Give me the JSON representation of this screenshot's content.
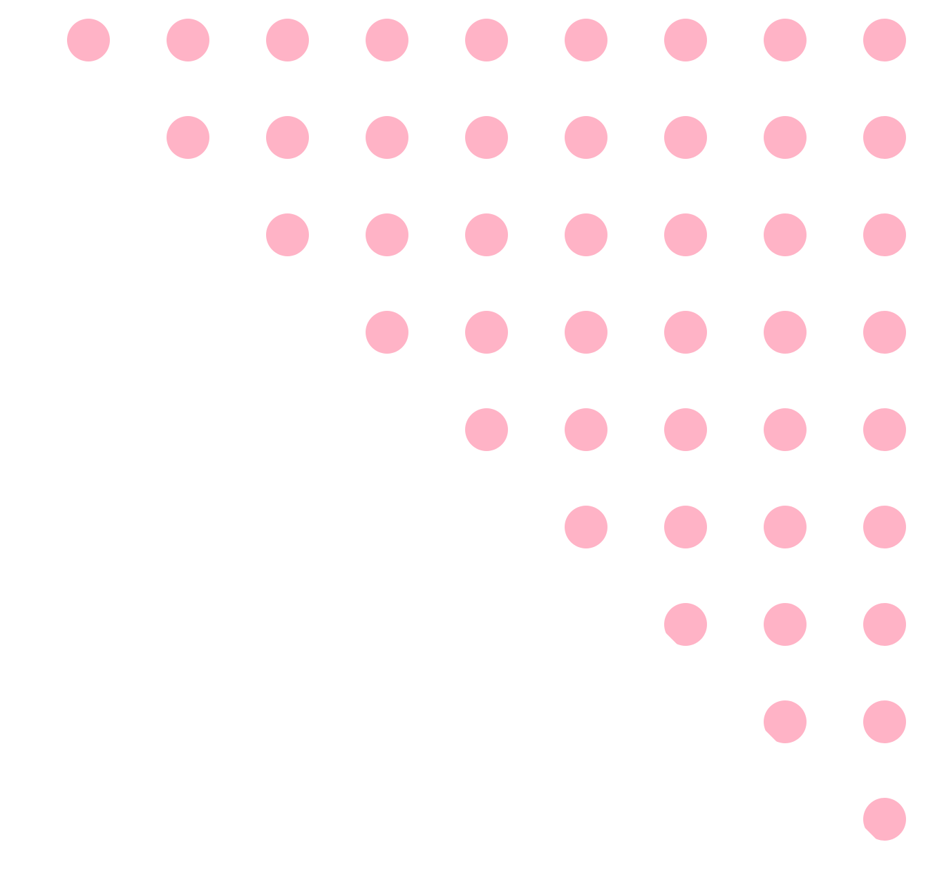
{
  "pattern": {
    "type": "upper-triangular-dot-grid",
    "rows": 9,
    "columns": 9,
    "dot_color": "#FFB3C6",
    "background_color": "#FFFFFF",
    "clipped_diagonal_rows": [
      6,
      7,
      8
    ]
  }
}
